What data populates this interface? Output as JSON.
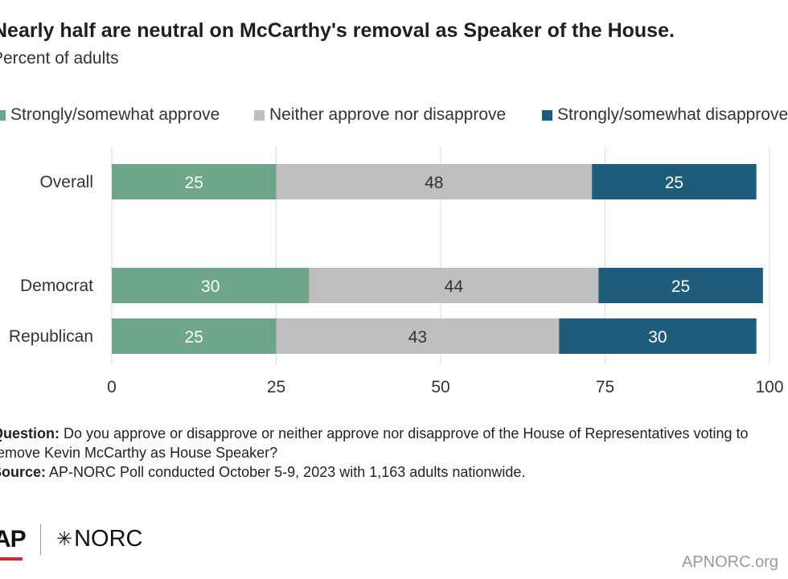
{
  "title": "Nearly half are neutral on McCarthy's removal as Speaker of the House.",
  "subtitle": "Percent of adults",
  "chart_data": {
    "type": "bar",
    "orientation": "horizontal",
    "stacked": true,
    "categories": [
      "Overall",
      "Democrat",
      "Republican"
    ],
    "series": [
      {
        "name": "Strongly/somewhat approve",
        "values": [
          25,
          30,
          25
        ],
        "color": "#6fa68a",
        "label_color": "#ffffff"
      },
      {
        "name": "Neither approve nor disapprove",
        "values": [
          48,
          44,
          43
        ],
        "color": "#bfbfbf",
        "label_color": "#333333"
      },
      {
        "name": "Strongly/somewhat disapprove",
        "values": [
          25,
          25,
          30
        ],
        "color": "#1d5c7a",
        "label_color": "#ffffff"
      }
    ],
    "xlim": [
      0,
      100
    ],
    "xticks": [
      0,
      25,
      50,
      75,
      100
    ],
    "grid": true,
    "legend_position": "top"
  },
  "notes": {
    "question_label": "Question:",
    "question_text": "Do you approve or disapprove or neither approve nor disapprove of the House of Representatives voting to remove Kevin McCarthy as House Speaker?",
    "source_label": "Source:",
    "source_text": "AP-NORC Poll conducted October 5-9, 2023 with 1,163 adults nationwide."
  },
  "logos": {
    "ap": "AP",
    "norc": "NORC",
    "norc_mark": "✳",
    "accent": "#d62631"
  },
  "site": "APNORC.org"
}
